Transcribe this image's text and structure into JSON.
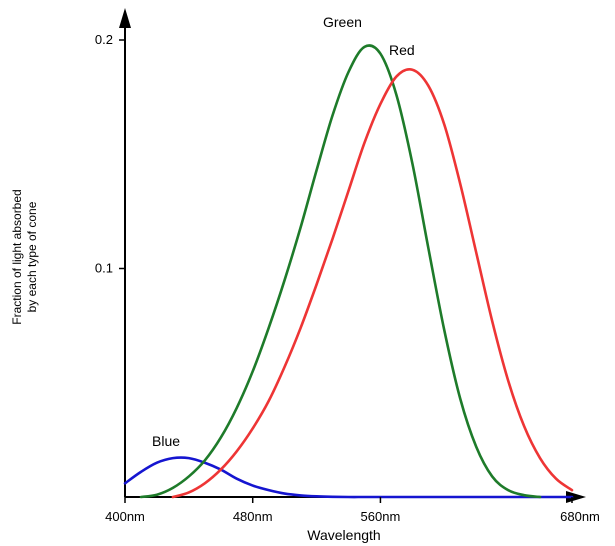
{
  "chart_data": {
    "type": "line",
    "title": "",
    "xlabel": "Wavelength",
    "ylabel_lines": [
      "Fraction of light absorbed",
      "by each type of cone"
    ],
    "xlim": [
      400,
      680
    ],
    "ylim": [
      0,
      0.2
    ],
    "x_ticks": [
      {
        "value": 400,
        "label": "400nm"
      },
      {
        "value": 480,
        "label": "480nm"
      },
      {
        "value": 560,
        "label": "560nm"
      },
      {
        "value": 680,
        "label": "680nm"
      }
    ],
    "y_ticks": [
      {
        "value": 0.1,
        "label": "0.1"
      },
      {
        "value": 0.2,
        "label": "0.2"
      }
    ],
    "grid": false,
    "series": [
      {
        "name": "Blue",
        "color": "#1515d0",
        "x": [
          400,
          410,
          420,
          430,
          440,
          450,
          460,
          470,
          480,
          490,
          500,
          510,
          520,
          530,
          540,
          550,
          560,
          570,
          580,
          590,
          600,
          610,
          620,
          630,
          640,
          650,
          660,
          670,
          680
        ],
        "y": [
          0.006,
          0.011,
          0.015,
          0.017,
          0.017,
          0.015,
          0.012,
          0.008,
          0.005,
          0.003,
          0.0015,
          0.0007,
          0.0003,
          0.0001,
          0,
          0,
          0,
          0,
          0,
          0,
          0,
          0,
          0,
          0,
          0,
          0,
          0,
          0,
          0
        ]
      },
      {
        "name": "Green",
        "color": "#1e7b2a",
        "x": [
          410,
          420,
          430,
          440,
          450,
          460,
          470,
          480,
          490,
          500,
          510,
          520,
          530,
          540,
          550,
          560,
          570,
          580,
          590,
          600,
          610,
          620,
          630,
          640,
          650,
          660
        ],
        "y": [
          0.0,
          0.001,
          0.004,
          0.009,
          0.016,
          0.026,
          0.039,
          0.055,
          0.074,
          0.095,
          0.118,
          0.143,
          0.167,
          0.186,
          0.197,
          0.194,
          0.176,
          0.146,
          0.109,
          0.073,
          0.043,
          0.022,
          0.009,
          0.003,
          0.0008,
          0.0
        ]
      },
      {
        "name": "Red",
        "color": "#ee3535",
        "x": [
          430,
          440,
          450,
          460,
          470,
          480,
          490,
          500,
          510,
          520,
          530,
          540,
          550,
          560,
          570,
          580,
          590,
          600,
          610,
          620,
          630,
          640,
          650,
          660,
          670,
          680
        ],
        "y": [
          0.0,
          0.002,
          0.006,
          0.012,
          0.02,
          0.03,
          0.042,
          0.057,
          0.074,
          0.093,
          0.113,
          0.134,
          0.155,
          0.172,
          0.184,
          0.187,
          0.18,
          0.163,
          0.137,
          0.107,
          0.077,
          0.051,
          0.031,
          0.017,
          0.008,
          0.003
        ]
      }
    ]
  }
}
